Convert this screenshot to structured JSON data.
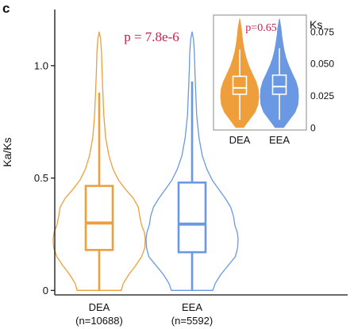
{
  "panel_label": "c",
  "colors": {
    "dea": "#EE9F3C",
    "eea": "#6A98E2",
    "pvalue": "#C8204A",
    "axis": "#111111"
  },
  "chart_data": [
    {
      "type": "violin",
      "ylabel": "Ka/Ks",
      "ylim": [
        -0.02,
        1.25
      ],
      "yticks": [
        {
          "v": 0,
          "label": "0"
        },
        {
          "v": 0.5,
          "label": "0.5"
        },
        {
          "v": 1.0,
          "label": "1.0"
        }
      ],
      "categories": [
        "DEA",
        "EEA"
      ],
      "category_counts": [
        "(n=10688)",
        "(n=5592)"
      ],
      "annotation": "p = 7.8e-6",
      "series": [
        {
          "name": "DEA",
          "color_key": "dea",
          "box": {
            "whisker_low": 0.0,
            "q1": 0.18,
            "median": 0.3,
            "q3": 0.465,
            "whisker_high": 0.88
          },
          "range": [
            0.0,
            1.15
          ],
          "density": [
            [
              0.0,
              0.48
            ],
            [
              0.03,
              0.52
            ],
            [
              0.07,
              0.64
            ],
            [
              0.11,
              0.79
            ],
            [
              0.15,
              0.92
            ],
            [
              0.19,
              0.99
            ],
            [
              0.23,
              1.0
            ],
            [
              0.26,
              0.98
            ],
            [
              0.29,
              0.92
            ],
            [
              0.33,
              0.88
            ],
            [
              0.37,
              0.85
            ],
            [
              0.41,
              0.74
            ],
            [
              0.45,
              0.57
            ],
            [
              0.49,
              0.42
            ],
            [
              0.54,
              0.3
            ],
            [
              0.6,
              0.21
            ],
            [
              0.68,
              0.14
            ],
            [
              0.78,
              0.1
            ],
            [
              0.88,
              0.08
            ],
            [
              0.98,
              0.06
            ],
            [
              1.06,
              0.05
            ],
            [
              1.12,
              0.03
            ],
            [
              1.15,
              0.0
            ]
          ]
        },
        {
          "name": "EEA",
          "color_key": "eea",
          "box": {
            "whisker_low": 0.0,
            "q1": 0.17,
            "median": 0.295,
            "q3": 0.48,
            "whisker_high": 0.93
          },
          "range": [
            0.0,
            1.15
          ],
          "density": [
            [
              0.0,
              0.45
            ],
            [
              0.03,
              0.5
            ],
            [
              0.07,
              0.62
            ],
            [
              0.11,
              0.78
            ],
            [
              0.15,
              0.94
            ],
            [
              0.19,
              0.99
            ],
            [
              0.23,
              1.0
            ],
            [
              0.26,
              0.98
            ],
            [
              0.29,
              0.93
            ],
            [
              0.33,
              0.9
            ],
            [
              0.37,
              0.84
            ],
            [
              0.41,
              0.72
            ],
            [
              0.45,
              0.58
            ],
            [
              0.49,
              0.44
            ],
            [
              0.54,
              0.32
            ],
            [
              0.6,
              0.22
            ],
            [
              0.68,
              0.15
            ],
            [
              0.78,
              0.1
            ],
            [
              0.88,
              0.08
            ],
            [
              0.98,
              0.06
            ],
            [
              1.06,
              0.05
            ],
            [
              1.12,
              0.03
            ],
            [
              1.15,
              0.0
            ]
          ]
        }
      ]
    },
    {
      "type": "violin",
      "ylabel": "Ks",
      "ylim": [
        -0.002,
        0.088
      ],
      "yticks": [
        {
          "v": 0,
          "label": "0"
        },
        {
          "v": 0.025,
          "label": "0.025"
        },
        {
          "v": 0.05,
          "label": "0.050"
        },
        {
          "v": 0.075,
          "label": "0.075"
        }
      ],
      "categories": [
        "DEA",
        "EEA"
      ],
      "annotation": "p=0.65",
      "series": [
        {
          "name": "DEA",
          "color_key": "dea",
          "box": {
            "whisker_low": 0.006,
            "q1": 0.026,
            "median": 0.031,
            "q3": 0.04,
            "whisker_high": 0.061
          },
          "range": [
            0.0,
            0.085
          ],
          "density": [
            [
              0.0,
              0.2
            ],
            [
              0.006,
              0.5
            ],
            [
              0.012,
              0.8
            ],
            [
              0.018,
              0.96
            ],
            [
              0.024,
              1.0
            ],
            [
              0.03,
              0.97
            ],
            [
              0.036,
              0.85
            ],
            [
              0.042,
              0.66
            ],
            [
              0.048,
              0.48
            ],
            [
              0.054,
              0.34
            ],
            [
              0.06,
              0.24
            ],
            [
              0.066,
              0.17
            ],
            [
              0.072,
              0.12
            ],
            [
              0.078,
              0.08
            ],
            [
              0.085,
              0.0
            ]
          ]
        },
        {
          "name": "EEA",
          "color_key": "eea",
          "box": {
            "whisker_low": 0.006,
            "q1": 0.026,
            "median": 0.032,
            "q3": 0.041,
            "whisker_high": 0.062
          },
          "range": [
            0.0,
            0.085
          ],
          "density": [
            [
              0.0,
              0.22
            ],
            [
              0.006,
              0.52
            ],
            [
              0.012,
              0.82
            ],
            [
              0.018,
              0.97
            ],
            [
              0.024,
              1.0
            ],
            [
              0.03,
              0.98
            ],
            [
              0.036,
              0.87
            ],
            [
              0.042,
              0.68
            ],
            [
              0.048,
              0.5
            ],
            [
              0.054,
              0.35
            ],
            [
              0.06,
              0.25
            ],
            [
              0.066,
              0.18
            ],
            [
              0.072,
              0.12
            ],
            [
              0.078,
              0.08
            ],
            [
              0.085,
              0.0
            ]
          ]
        }
      ]
    }
  ]
}
